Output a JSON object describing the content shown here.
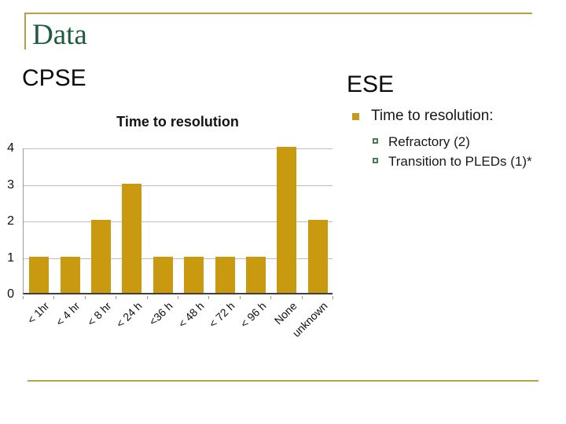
{
  "slide": {
    "title": "Data",
    "left_heading": "CPSE",
    "right_heading": "ESE"
  },
  "bullets": {
    "level1": "Time to resolution:",
    "level2": [
      "Refractory (2)",
      "Transition to PLEDs (1)*"
    ]
  },
  "chart_data": {
    "type": "bar",
    "title": "Time to resolution",
    "categories": [
      "< 1hr",
      "< 4 hr",
      "< 8 hr",
      "< 24 h",
      "<36 h",
      "< 48 h",
      "< 72 h",
      "< 96 h",
      "None",
      "unknown"
    ],
    "values": [
      1,
      1,
      2,
      3,
      1,
      1,
      1,
      1,
      4,
      2
    ],
    "xlabel": "",
    "ylabel": "",
    "ylim": [
      0,
      4
    ],
    "yticks": [
      0,
      1,
      2,
      3,
      4
    ],
    "grid": true,
    "legend": "none",
    "bar_color": "#c9990f"
  },
  "colors": {
    "accent_gold_rule": "#b3a043",
    "bottom_rule_gold": "#b5a642",
    "title_green": "#1e5b40",
    "bullet_gold": "#c59a1e",
    "sub_bullet_green": "#4c7c50",
    "gridline_gray": "#bdbdbd",
    "text_black": "#111111"
  }
}
